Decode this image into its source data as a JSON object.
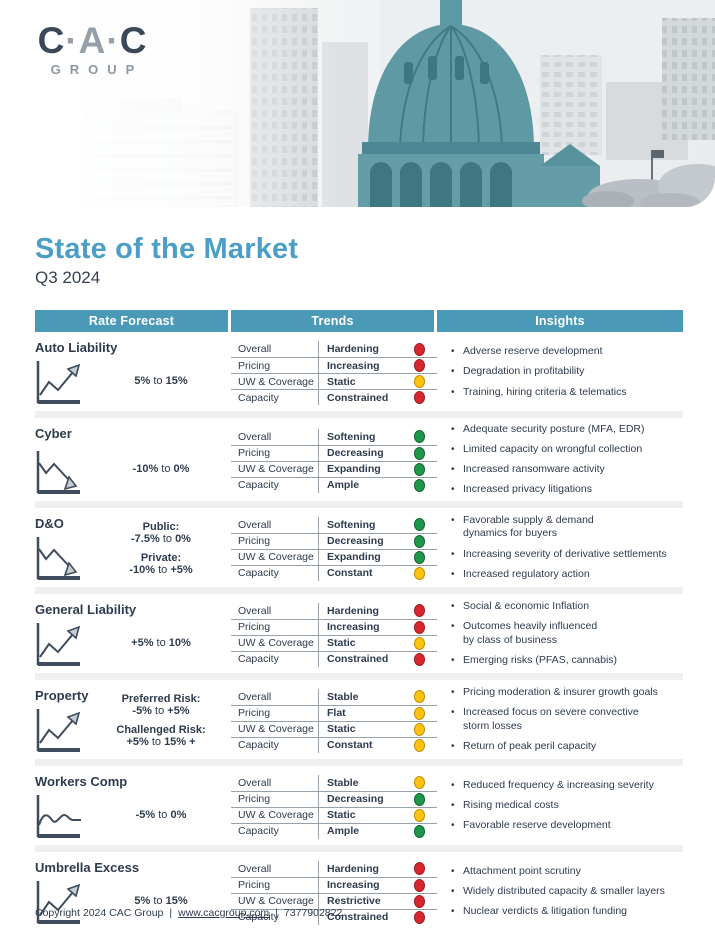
{
  "logo": {
    "c1": "C",
    "dot1": "·",
    "a": "A",
    "dot2": "·",
    "c2": "C",
    "group": "GROUP"
  },
  "page": {
    "title": "State of the Market",
    "subtitle": "Q3 2024"
  },
  "colors": {
    "teal_header": "#4A99B6",
    "title_blue": "#4C9EC6",
    "navy": "#2E3B4E"
  },
  "status_colors": {
    "red": {
      "fill": "#D7272E",
      "edge": "#9E1B22"
    },
    "yellow": {
      "fill": "#FFC20D",
      "edge": "#C18E06"
    },
    "green": {
      "fill": "#1E9749",
      "edge": "#126334"
    }
  },
  "table": {
    "columns": [
      "Rate Forecast",
      "Trends",
      "Insights"
    ],
    "rows": [
      {
        "name": "Auto Liability",
        "icon": "up",
        "rates": [
          {
            "label": "",
            "parts": [
              "5%",
              " to ",
              "15%"
            ]
          }
        ],
        "trends": [
          {
            "label": "Overall",
            "value": "Hardening",
            "status": "red"
          },
          {
            "label": "Pricing",
            "value": "Increasing",
            "status": "red"
          },
          {
            "label": "UW & Coverage",
            "value": "Static",
            "status": "yellow"
          },
          {
            "label": "Capacity",
            "value": "Constrained",
            "status": "red"
          }
        ],
        "insights": [
          "Adverse reserve development",
          "Degradation in profitability",
          "Training, hiring criteria & telematics"
        ]
      },
      {
        "name": "Cyber",
        "icon": "down",
        "rates": [
          {
            "label": "",
            "parts": [
              "-10%",
              " to ",
              "0%"
            ]
          }
        ],
        "trends": [
          {
            "label": "Overall",
            "value": "Softening",
            "status": "green"
          },
          {
            "label": "Pricing",
            "value": "Decreasing",
            "status": "green"
          },
          {
            "label": "UW & Coverage",
            "value": "Expanding",
            "status": "green"
          },
          {
            "label": "Capacity",
            "value": "Ample",
            "status": "green"
          }
        ],
        "insights": [
          "Adequate security posture (MFA, EDR)",
          "Limited capacity on wrongful collection",
          "Increased ransomware activity",
          "Increased privacy litigations"
        ]
      },
      {
        "name": "D&O",
        "icon": "down",
        "rates": [
          {
            "label": "Public:",
            "parts": [
              "-7.5%",
              " to ",
              "0%"
            ]
          },
          {
            "label": "Private:",
            "parts": [
              "-10%",
              " to ",
              "+5%"
            ]
          }
        ],
        "trends": [
          {
            "label": "Overall",
            "value": "Softening",
            "status": "green"
          },
          {
            "label": "Pricing",
            "value": "Decreasing",
            "status": "green"
          },
          {
            "label": "UW & Coverage",
            "value": "Expanding",
            "status": "green"
          },
          {
            "label": "Capacity",
            "value": "Constant",
            "status": "yellow"
          }
        ],
        "insights": [
          "Favorable supply & demand\ndynamics for buyers",
          "Increasing severity of derivative settlements",
          "Increased regulatory action"
        ]
      },
      {
        "name": "General Liability",
        "icon": "up",
        "rates": [
          {
            "label": "",
            "parts": [
              "+5%",
              " to ",
              "10%"
            ]
          }
        ],
        "trends": [
          {
            "label": "Overall",
            "value": "Hardening",
            "status": "red"
          },
          {
            "label": "Pricing",
            "value": "Increasing",
            "status": "red"
          },
          {
            "label": "UW & Coverage",
            "value": "Static",
            "status": "yellow"
          },
          {
            "label": "Capacity",
            "value": "Constrained",
            "status": "red"
          }
        ],
        "insights": [
          "Social & economic Inflation",
          "Outcomes heavily influenced\nby class of business",
          "Emerging risks (PFAS, cannabis)"
        ]
      },
      {
        "name": "Property",
        "icon": "up",
        "rates": [
          {
            "label": "Preferred Risk:",
            "parts": [
              "-5%",
              " to ",
              "+5%"
            ]
          },
          {
            "label": "Challenged Risk:",
            "parts": [
              "+5%",
              " to ",
              "15% +"
            ]
          }
        ],
        "trends": [
          {
            "label": "Overall",
            "value": "Stable",
            "status": "yellow"
          },
          {
            "label": "Pricing",
            "value": "Flat",
            "status": "yellow"
          },
          {
            "label": "UW & Coverage",
            "value": "Static",
            "status": "yellow"
          },
          {
            "label": "Capacity",
            "value": "Constant",
            "status": "yellow"
          }
        ],
        "insights": [
          "Pricing moderation & insurer growth goals",
          "Increased focus on severe convective\nstorm losses",
          "Return of peak peril capacity"
        ]
      },
      {
        "name": "Workers Comp",
        "icon": "flat",
        "rates": [
          {
            "label": "",
            "parts": [
              "-5%",
              " to ",
              "0%"
            ]
          }
        ],
        "trends": [
          {
            "label": "Overall",
            "value": "Stable",
            "status": "yellow"
          },
          {
            "label": "Pricing",
            "value": "Decreasing",
            "status": "green"
          },
          {
            "label": "UW & Coverage",
            "value": "Static",
            "status": "yellow"
          },
          {
            "label": "Capacity",
            "value": "Ample",
            "status": "green"
          }
        ],
        "insights": [
          "Reduced frequency & increasing severity",
          "Rising medical costs",
          "Favorable reserve development"
        ]
      },
      {
        "name": "Umbrella Excess",
        "icon": "up",
        "rates": [
          {
            "label": "",
            "parts": [
              "5%",
              " to ",
              "15%"
            ]
          }
        ],
        "trends": [
          {
            "label": "Overall",
            "value": "Hardening",
            "status": "red"
          },
          {
            "label": "Pricing",
            "value": "Increasing",
            "status": "red"
          },
          {
            "label": "UW & Coverage",
            "value": "Restrictive",
            "status": "red"
          },
          {
            "label": "Capacity",
            "value": "Constrained",
            "status": "red"
          }
        ],
        "insights": [
          "Attachment point scrutiny",
          "Widely distributed capacity & smaller layers",
          "Nuclear verdicts & litigation funding"
        ]
      }
    ]
  },
  "footer": {
    "copyright": "Copyright 2024 CAC Group",
    "sep": "|",
    "link": "www.cacgroup.com",
    "phone": "7377902822"
  }
}
